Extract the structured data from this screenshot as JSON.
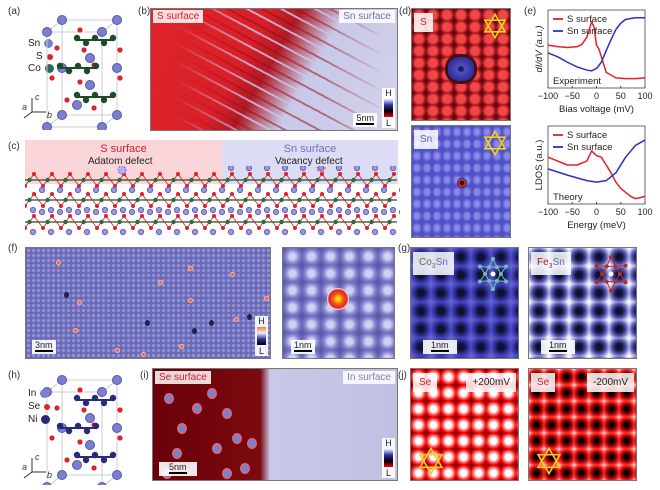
{
  "panels": {
    "a": "(a)",
    "b": "(b)",
    "c": "(c)",
    "d": "(d)",
    "e": "(e)",
    "f": "(f)",
    "g": "(g)",
    "h": "(h)",
    "i": "(i)",
    "j": "(j)"
  },
  "a": {
    "legend": [
      {
        "label": "Sn",
        "color": "#7b7fd0"
      },
      {
        "label": "S",
        "color": "#e0202a"
      },
      {
        "label": "Co",
        "color": "#2e5a3a"
      }
    ],
    "axes": {
      "c": "c",
      "a": "a",
      "b": "b"
    }
  },
  "b": {
    "left_tag": "S surface",
    "right_tag": "Sn surface",
    "scale": "5nm",
    "cbar_h": "H",
    "cbar_l": "L"
  },
  "c": {
    "left_title": "S surface",
    "right_title": "Sn surface",
    "left_defect": "Adatom defect",
    "right_defect": "Vacancy defect"
  },
  "d": {
    "top_tag": "S",
    "bottom_tag": "Sn"
  },
  "f": {
    "scale1": "3nm",
    "scale2": "1nm",
    "cbar_h": "H",
    "cbar_l": "L"
  },
  "g": {
    "tag1_main": "Co",
    "tag1_sub": "3",
    "tag1_end": "Sn",
    "tag2_main": "Fe",
    "tag2_sub": "3",
    "tag2_end": "Sn",
    "scale1": "1nm",
    "scale2": "1nm"
  },
  "h": {
    "legend": [
      {
        "label": "In",
        "color": "#7b7fd0"
      },
      {
        "label": "Se",
        "color": "#e0202a"
      },
      {
        "label": "Ni",
        "color": "#2a2a7a"
      }
    ],
    "axes": {
      "c": "c",
      "a": "a",
      "b": "b"
    }
  },
  "i": {
    "left_tag": "Se surface",
    "right_tag": "In surface",
    "scale": "5nm",
    "cbar_h": "H",
    "cbar_l": "L"
  },
  "j": {
    "tag1": "Se",
    "bias1": "+200mV",
    "tag2": "Se",
    "bias2": "-200mV"
  },
  "colors": {
    "s_surface": "#e0202a",
    "sn_surface": "#3030c0",
    "star": "#f0d020"
  },
  "chart_data": [
    {
      "type": "line",
      "ylabel": "dI/dV (a.u.)",
      "xlabel": "Bias voltage (mV)",
      "annotation": "Experiment",
      "xlim": [
        -100,
        100
      ],
      "xticks": [
        -100,
        -50,
        0,
        50,
        100
      ],
      "legend_placement": "top-left",
      "grid": false,
      "series": [
        {
          "name": "S surface",
          "color": "#e0202a",
          "x": [
            -100,
            -80,
            -60,
            -40,
            -30,
            -20,
            -10,
            -5,
            0,
            5,
            10,
            20,
            40,
            60,
            80,
            100
          ],
          "y": [
            0.55,
            0.53,
            0.52,
            0.53,
            0.56,
            0.65,
            0.85,
            0.78,
            0.55,
            0.5,
            0.4,
            0.2,
            0.13,
            0.12,
            0.12,
            0.13
          ]
        },
        {
          "name": "Sn surface",
          "color": "#3030c0",
          "x": [
            -100,
            -80,
            -60,
            -40,
            -20,
            -10,
            0,
            10,
            20,
            30,
            40,
            50,
            60,
            80,
            100
          ],
          "y": [
            0.45,
            0.4,
            0.33,
            0.27,
            0.23,
            0.22,
            0.25,
            0.33,
            0.48,
            0.62,
            0.75,
            0.83,
            0.88,
            0.9,
            0.9
          ]
        }
      ]
    },
    {
      "type": "line",
      "ylabel": "LDOS (a.u.)",
      "xlabel": "Energy (meV)",
      "annotation": "Theory",
      "xlim": [
        -100,
        100
      ],
      "xticks": [
        -100,
        -50,
        0,
        50,
        100
      ],
      "legend_placement": "top-left",
      "grid": false,
      "series": [
        {
          "name": "S surface",
          "color": "#e0202a",
          "x": [
            -100,
            -80,
            -60,
            -40,
            -20,
            -10,
            0,
            10,
            20,
            30,
            40,
            50,
            60,
            70,
            80,
            90,
            100
          ],
          "y": [
            0.6,
            0.55,
            0.5,
            0.5,
            0.55,
            0.68,
            0.62,
            0.6,
            0.5,
            0.4,
            0.28,
            0.2,
            0.15,
            0.1,
            0.07,
            0.08,
            0.1
          ]
        },
        {
          "name": "Sn surface",
          "color": "#3030c0",
          "x": [
            -100,
            -60,
            -20,
            0,
            20,
            40,
            60,
            80,
            100
          ],
          "y": [
            0.45,
            0.37,
            0.3,
            0.28,
            0.3,
            0.4,
            0.6,
            0.75,
            0.82
          ]
        }
      ]
    }
  ]
}
